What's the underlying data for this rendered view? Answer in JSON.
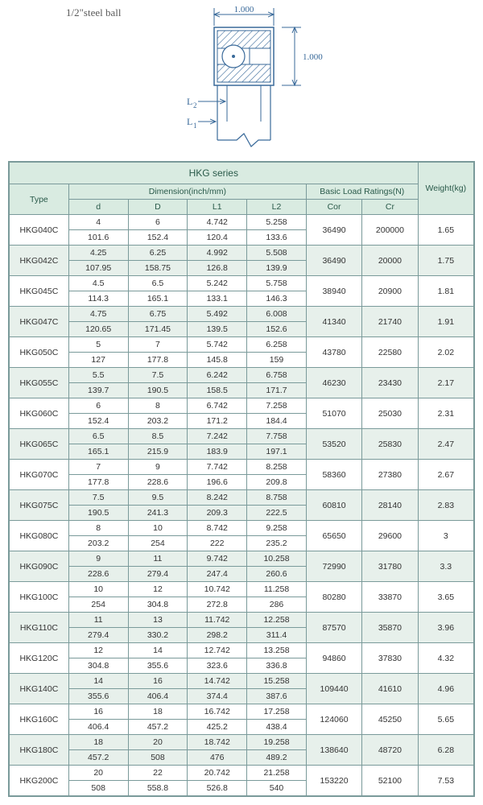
{
  "top": {
    "steel_ball_label": "1/2\"steel ball",
    "dim_width": "1.000",
    "dim_height": "1.000",
    "label_L1": "L",
    "label_L1_sub": "1",
    "label_L2": "L",
    "label_L2_sub": "2"
  },
  "table": {
    "series_title": "HKG series",
    "headers": {
      "type": "Type",
      "dimension": "Dimension(inch/mm)",
      "basic_load": "Basic Load Ratings(N)",
      "weight": "Weight(kg)",
      "d": "d",
      "D": "D",
      "L1": "L1",
      "L2": "L2",
      "Cor": "Cor",
      "Cr": "Cr"
    },
    "rows": [
      {
        "type": "HKG040C",
        "d1": "4",
        "d2": "101.6",
        "D1": "6",
        "D2": "152.4",
        "L1a": "4.742",
        "L1b": "120.4",
        "L2a": "5.258",
        "L2b": "133.6",
        "Cor": "36490",
        "Cr": "200000",
        "wt": "1.65",
        "alt": false
      },
      {
        "type": "HKG042C",
        "d1": "4.25",
        "d2": "107.95",
        "D1": "6.25",
        "D2": "158.75",
        "L1a": "4.992",
        "L1b": "126.8",
        "L2a": "5.508",
        "L2b": "139.9",
        "Cor": "36490",
        "Cr": "20000",
        "wt": "1.75",
        "alt": true
      },
      {
        "type": "HKG045C",
        "d1": "4.5",
        "d2": "114.3",
        "D1": "6.5",
        "D2": "165.1",
        "L1a": "5.242",
        "L1b": "133.1",
        "L2a": "5.758",
        "L2b": "146.3",
        "Cor": "38940",
        "Cr": "20900",
        "wt": "1.81",
        "alt": false
      },
      {
        "type": "HKG047C",
        "d1": "4.75",
        "d2": "120.65",
        "D1": "6.75",
        "D2": "171.45",
        "L1a": "5.492",
        "L1b": "139.5",
        "L2a": "6.008",
        "L2b": "152.6",
        "Cor": "41340",
        "Cr": "21740",
        "wt": "1.91",
        "alt": true
      },
      {
        "type": "HKG050C",
        "d1": "5",
        "d2": "127",
        "D1": "7",
        "D2": "177.8",
        "L1a": "5.742",
        "L1b": "145.8",
        "L2a": "6.258",
        "L2b": "159",
        "Cor": "43780",
        "Cr": "22580",
        "wt": "2.02",
        "alt": false
      },
      {
        "type": "HKG055C",
        "d1": "5.5",
        "d2": "139.7",
        "D1": "7.5",
        "D2": "190.5",
        "L1a": "6.242",
        "L1b": "158.5",
        "L2a": "6.758",
        "L2b": "171.7",
        "Cor": "46230",
        "Cr": "23430",
        "wt": "2.17",
        "alt": true
      },
      {
        "type": "HKG060C",
        "d1": "6",
        "d2": "152.4",
        "D1": "8",
        "D2": "203.2",
        "L1a": "6.742",
        "L1b": "171.2",
        "L2a": "7.258",
        "L2b": "184.4",
        "Cor": "51070",
        "Cr": "25030",
        "wt": "2.31",
        "alt": false
      },
      {
        "type": "HKG065C",
        "d1": "6.5",
        "d2": "165.1",
        "D1": "8.5",
        "D2": "215.9",
        "L1a": "7.242",
        "L1b": "183.9",
        "L2a": "7.758",
        "L2b": "197.1",
        "Cor": "53520",
        "Cr": "25830",
        "wt": "2.47",
        "alt": true
      },
      {
        "type": "HKG070C",
        "d1": "7",
        "d2": "177.8",
        "D1": "9",
        "D2": "228.6",
        "L1a": "7.742",
        "L1b": "196.6",
        "L2a": "8.258",
        "L2b": "209.8",
        "Cor": "58360",
        "Cr": "27380",
        "wt": "2.67",
        "alt": false
      },
      {
        "type": "HKG075C",
        "d1": "7.5",
        "d2": "190.5",
        "D1": "9.5",
        "D2": "241.3",
        "L1a": "8.242",
        "L1b": "209.3",
        "L2a": "8.758",
        "L2b": "222.5",
        "Cor": "60810",
        "Cr": "28140",
        "wt": "2.83",
        "alt": true
      },
      {
        "type": "HKG080C",
        "d1": "8",
        "d2": "203.2",
        "D1": "10",
        "D2": "254",
        "L1a": "8.742",
        "L1b": "222",
        "L2a": "9.258",
        "L2b": "235.2",
        "Cor": "65650",
        "Cr": "29600",
        "wt": "3",
        "alt": false
      },
      {
        "type": "HKG090C",
        "d1": "9",
        "d2": "228.6",
        "D1": "11",
        "D2": "279.4",
        "L1a": "9.742",
        "L1b": "247.4",
        "L2a": "10.258",
        "L2b": "260.6",
        "Cor": "72990",
        "Cr": "31780",
        "wt": "3.3",
        "alt": true
      },
      {
        "type": "HKG100C",
        "d1": "10",
        "d2": "254",
        "D1": "12",
        "D2": "304.8",
        "L1a": "10.742",
        "L1b": "272.8",
        "L2a": "11.258",
        "L2b": "286",
        "Cor": "80280",
        "Cr": "33870",
        "wt": "3.65",
        "alt": false
      },
      {
        "type": "HKG110C",
        "d1": "11",
        "d2": "279.4",
        "D1": "13",
        "D2": "330.2",
        "L1a": "11.742",
        "L1b": "298.2",
        "L2a": "12.258",
        "L2b": "311.4",
        "Cor": "87570",
        "Cr": "35870",
        "wt": "3.96",
        "alt": true
      },
      {
        "type": "HKG120C",
        "d1": "12",
        "d2": "304.8",
        "D1": "14",
        "D2": "355.6",
        "L1a": "12.742",
        "L1b": "323.6",
        "L2a": "13.258",
        "L2b": "336.8",
        "Cor": "94860",
        "Cr": "37830",
        "wt": "4.32",
        "alt": false
      },
      {
        "type": "HKG140C",
        "d1": "14",
        "d2": "355.6",
        "D1": "16",
        "D2": "406.4",
        "L1a": "14.742",
        "L1b": "374.4",
        "L2a": "15.258",
        "L2b": "387.6",
        "Cor": "109440",
        "Cr": "41610",
        "wt": "4.96",
        "alt": true
      },
      {
        "type": "HKG160C",
        "d1": "16",
        "d2": "406.4",
        "D1": "18",
        "D2": "457.2",
        "L1a": "16.742",
        "L1b": "425.2",
        "L2a": "17.258",
        "L2b": "438.4",
        "Cor": "124060",
        "Cr": "45250",
        "wt": "5.65",
        "alt": false
      },
      {
        "type": "HKG180C",
        "d1": "18",
        "d2": "457.2",
        "D1": "20",
        "D2": "508",
        "L1a": "18.742",
        "L1b": "476",
        "L2a": "19.258",
        "L2b": "489.2",
        "Cor": "138640",
        "Cr": "48720",
        "wt": "6.28",
        "alt": true
      },
      {
        "type": "HKG200C",
        "d1": "20",
        "d2": "508",
        "D1": "22",
        "D2": "558.8",
        "L1a": "20.742",
        "L1b": "526.8",
        "L2a": "21.258",
        "L2b": "540",
        "Cor": "153220",
        "Cr": "52100",
        "wt": "7.53",
        "alt": false
      }
    ]
  },
  "style": {
    "header_bg": "#d9ebe1",
    "alt_row_bg": "#e7f0eb",
    "border_color": "#7a9a9a",
    "text_color": "#333333",
    "header_text_color": "#2a5a4a",
    "diagram_stroke": "#3a6a9a"
  }
}
